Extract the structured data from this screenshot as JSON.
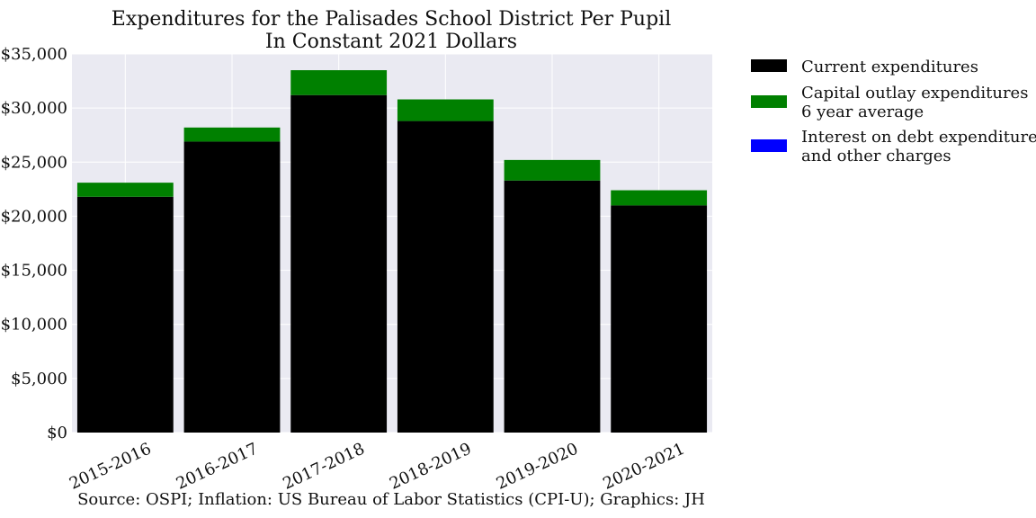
{
  "chart_data": {
    "type": "bar",
    "stacked": true,
    "title": [
      "Expenditures for the Palisades School District Per Pupil",
      "In Constant 2021 Dollars"
    ],
    "categories": [
      "2015-2016",
      "2016-2017",
      "2017-2018",
      "2018-2019",
      "2019-2020",
      "2020-2021"
    ],
    "series": [
      {
        "name": "Current expenditures",
        "color": "#000000",
        "values": [
          21800,
          26900,
          31200,
          28800,
          23300,
          21000
        ]
      },
      {
        "name": "Capital outlay expenditures\n6 year average",
        "color": "#008000",
        "values": [
          1300,
          1300,
          2300,
          2000,
          1900,
          1400
        ]
      },
      {
        "name": "Interest on debt expenditures\nand other charges",
        "color": "#0000ff",
        "values": [
          0,
          0,
          0,
          0,
          0,
          0
        ]
      }
    ],
    "ylim": [
      0,
      35000
    ],
    "yticks": [
      0,
      5000,
      10000,
      15000,
      20000,
      25000,
      30000,
      35000
    ],
    "ytick_labels": [
      "$0",
      "$5,000",
      "$10,000",
      "$15,000",
      "$20,000",
      "$25,000",
      "$30,000",
      "$35,000"
    ],
    "grid": true,
    "legend_position": "outside-right",
    "source": "Source: OSPI; Inflation: US Bureau of Labor Statistics (CPI-U); Graphics: JH",
    "colors": {
      "plot_background": "#eaeaf2",
      "grid": "#ffffff"
    }
  }
}
